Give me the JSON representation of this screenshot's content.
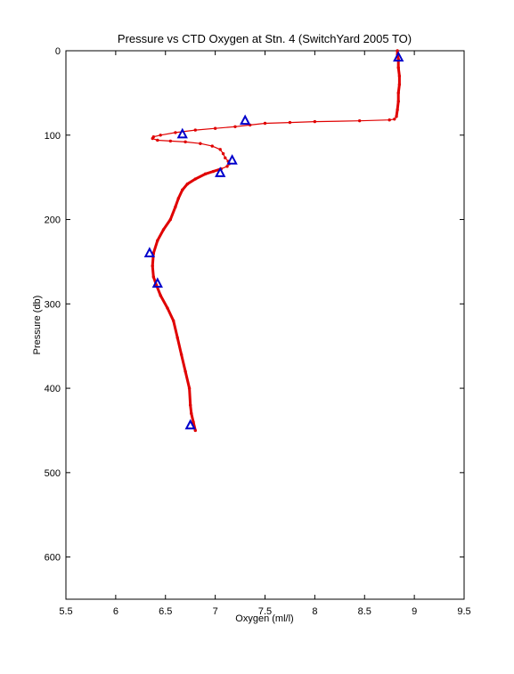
{
  "chart_data": {
    "type": "scatter",
    "title": "Pressure vs CTD Oxygen at Stn. 4 (SwitchYard 2005 TO)",
    "xlabel": "Oxygen (ml/l)",
    "ylabel": "Pressure (db)",
    "xlim": [
      5.5,
      9.5
    ],
    "ylim": [
      0,
      650
    ],
    "y_reversed": true,
    "grid": false,
    "xticks": [
      "5.5",
      "6",
      "6.5",
      "7",
      "7.5",
      "8",
      "8.5",
      "9",
      "9.5"
    ],
    "yticks": [
      "0",
      "100",
      "200",
      "300",
      "400",
      "500",
      "600"
    ],
    "series": [
      {
        "kind": "line-with-points",
        "color": "#e00000",
        "points": [
          [
            8.83,
            0
          ],
          [
            8.83,
            5
          ],
          [
            8.84,
            10
          ],
          [
            8.84,
            20
          ],
          [
            8.85,
            30
          ],
          [
            8.85,
            40
          ],
          [
            8.84,
            50
          ],
          [
            8.84,
            60
          ],
          [
            8.83,
            70
          ],
          [
            8.82,
            78
          ],
          [
            8.8,
            81
          ],
          [
            8.75,
            82
          ],
          [
            8.45,
            83
          ],
          [
            8.0,
            84
          ],
          [
            7.75,
            85
          ],
          [
            7.5,
            86
          ],
          [
            7.35,
            88
          ],
          [
            7.2,
            90
          ],
          [
            7.0,
            92
          ],
          [
            6.8,
            94
          ],
          [
            6.6,
            97
          ],
          [
            6.45,
            100
          ],
          [
            6.38,
            102
          ],
          [
            6.37,
            104
          ],
          [
            6.42,
            106
          ],
          [
            6.55,
            107
          ],
          [
            6.7,
            108
          ],
          [
            6.85,
            110
          ],
          [
            6.97,
            113
          ],
          [
            7.05,
            117
          ],
          [
            7.08,
            122
          ],
          [
            7.1,
            127
          ],
          [
            7.13,
            131
          ],
          [
            7.14,
            134
          ],
          [
            7.12,
            137
          ],
          [
            7.06,
            140
          ],
          [
            6.98,
            143
          ],
          [
            6.9,
            146
          ],
          [
            6.8,
            152
          ],
          [
            6.72,
            158
          ],
          [
            6.67,
            165
          ],
          [
            6.63,
            175
          ],
          [
            6.6,
            185
          ],
          [
            6.55,
            200
          ],
          [
            6.48,
            212
          ],
          [
            6.42,
            225
          ],
          [
            6.38,
            240
          ],
          [
            6.37,
            255
          ],
          [
            6.38,
            268
          ],
          [
            6.41,
            278
          ],
          [
            6.45,
            290
          ],
          [
            6.52,
            305
          ],
          [
            6.58,
            320
          ],
          [
            6.62,
            340
          ],
          [
            6.66,
            360
          ],
          [
            6.7,
            380
          ],
          [
            6.74,
            400
          ],
          [
            6.75,
            420
          ],
          [
            6.76,
            430
          ],
          [
            6.78,
            440
          ],
          [
            6.8,
            450
          ]
        ]
      },
      {
        "kind": "triangle-markers",
        "color": "#0000cc",
        "points": [
          [
            8.84,
            8
          ],
          [
            7.3,
            83
          ],
          [
            6.67,
            99
          ],
          [
            7.17,
            130
          ],
          [
            7.05,
            145
          ],
          [
            6.34,
            240
          ],
          [
            6.42,
            276
          ],
          [
            6.75,
            444
          ]
        ]
      }
    ]
  }
}
